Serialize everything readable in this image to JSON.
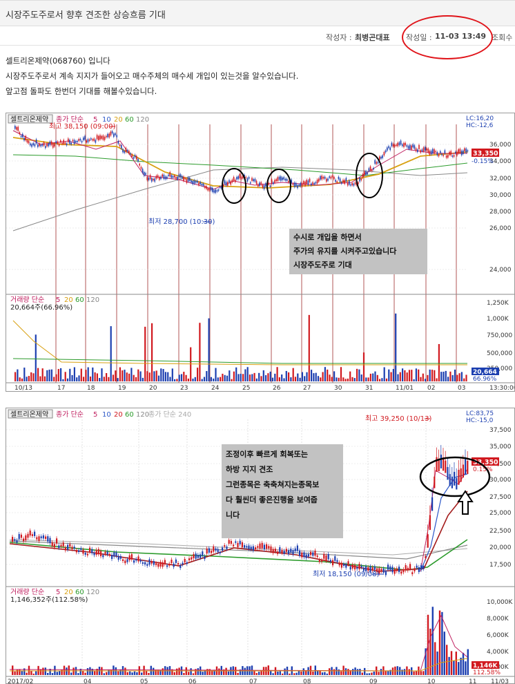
{
  "post": {
    "title": "시장주도주로서 향후 견조한 상승흐름 기대",
    "author_label": "작성자 :",
    "author": "최병곤대표",
    "date_label": "작성일 :",
    "date": "11-03 13:49",
    "views_label": "조회수",
    "lines": [
      "셀트리온제약(068760) 입니다",
      "시장주도주로서 계속 지지가 들어오고 매수주체의 매수세 개입이 있는것을 알수있습니다.",
      "앞고점 돌파도 한번더 기대를 해볼수있습니다."
    ]
  },
  "chart1": {
    "name": "셀트리온제약",
    "legend_price_label": "종가 단순",
    "ma_periods": [
      "5",
      "10",
      "20",
      "60",
      "120"
    ],
    "lc": "LC:16,20",
    "hc": "HC:-12,6",
    "high_label": "최고 38,150 (09:00)",
    "low_label": "최저 28,700 (10:30)",
    "y_ticks": [
      "36,000",
      "34,000",
      "32,000",
      "30,000",
      "28,000",
      "26,000",
      "24,000"
    ],
    "price_tag": "33,350",
    "change_tag": "-0.15%",
    "annotation": [
      "수시로 개입을 하면서",
      "주가의 유지를 시켜주고있습니다",
      "시장주도주로 기대"
    ],
    "volume_label": "거래량 단순",
    "volume_value": "20,664주(66.96%)",
    "volume_ticks": [
      "1,250K",
      "1,000K",
      "750,000",
      "500,000",
      "250,000"
    ],
    "volume_tag": "20,664",
    "volume_pct_tag": "66.96%",
    "x_labels": [
      "10/13",
      "17",
      "18",
      "19",
      "20",
      "23",
      "24",
      "25",
      "26",
      "27",
      "30",
      "31",
      "11/01",
      "02",
      "03",
      "13:30:00"
    ]
  },
  "chart2": {
    "name": "셀트리온제약",
    "legend_price_label": "종가 단순",
    "ma_periods": [
      "5",
      "10",
      "20",
      "60",
      "120"
    ],
    "legend_extra": "종가 단순 240",
    "lc": "LC:83,75",
    "hc": "HC:-15,0",
    "high_label": "최고 39,250 (10/13)",
    "low_label": "최저 18,150 (09/08)",
    "y_ticks": [
      "37,500",
      "35,000",
      "32,500",
      "30,000",
      "27,500",
      "25,000",
      "22,500",
      "20,000",
      "17,500"
    ],
    "price_tag": "33,350",
    "change_tag": "0.15%",
    "annotation": [
      "조정이후 빠르게 회복또는",
      "하방 지지 견조",
      "그런종목은 축축쳐지는종목보",
      "다 훨씬더 좋은진행을 보여줍",
      "니다"
    ],
    "volume_label": "거래량 단순",
    "volume_value": "1,146,352주(112.58%)",
    "volume_ticks": [
      "10,000K",
      "8,000K",
      "6,000K",
      "4,000K",
      "2,000K"
    ],
    "volume_tag": "1,146K",
    "volume_pct_tag": "112.58%",
    "x_labels": [
      "2017/02",
      "04",
      "05",
      "06",
      "07",
      "08",
      "09",
      "10",
      "11",
      "11/03"
    ]
  },
  "colors": {
    "oval": "#e0141a",
    "up": "#d1191f",
    "down": "#1c3fb0",
    "ma5": "#c02060",
    "ma10": "#2a56c8",
    "ma20": "#d8a010",
    "ma60": "#2a9a2a",
    "ma120": "#888888",
    "note_bg": "#c2c2c2"
  }
}
